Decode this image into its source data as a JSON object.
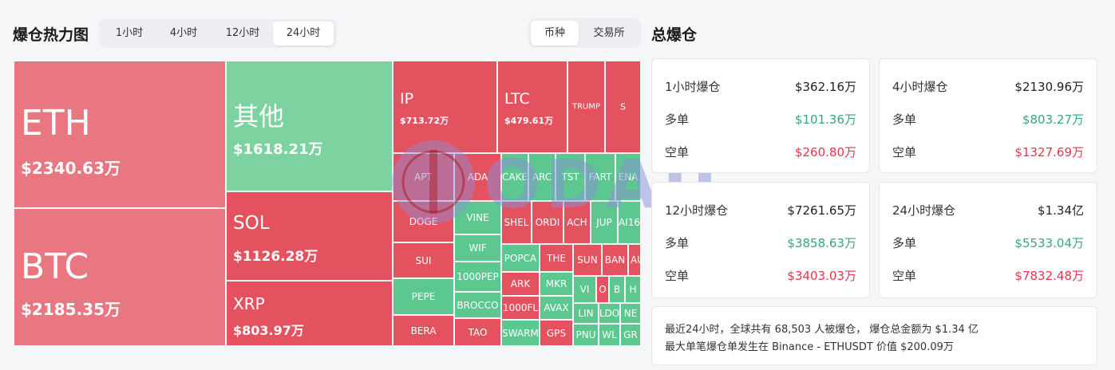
{
  "heatmap": {
    "title": "爆仓热力图",
    "timeframes": [
      "1小时",
      "4小时",
      "12小时",
      "24小时"
    ],
    "active_timeframe": "24小时",
    "modes": [
      "币种",
      "交易所"
    ],
    "active_mode": "币种",
    "colors": {
      "long": "#5cc88f",
      "short": "#e5525f",
      "short_light": "#e97782",
      "other": "#7dd3a0"
    },
    "tiles": {
      "eth": {
        "name": "ETH",
        "value": "$2340.63万"
      },
      "btc": {
        "name": "BTC",
        "value": "$2185.35万"
      },
      "other": {
        "name": "其他",
        "value": "$1618.21万"
      },
      "sol": {
        "name": "SOL",
        "value": "$1126.28万"
      },
      "xrp": {
        "name": "XRP",
        "value": "$803.97万"
      },
      "ip": {
        "name": "IP",
        "value": "$713.72万"
      },
      "ltc": {
        "name": "LTC",
        "value": "$479.61万"
      },
      "trump": {
        "name": "TRUMP"
      },
      "s": {
        "name": "S"
      },
      "apt": {
        "name": "APT"
      },
      "ada": {
        "name": "ADA"
      },
      "cake": {
        "name": "CAKE"
      },
      "arc": {
        "name": "ARC"
      },
      "tst": {
        "name": "TST"
      },
      "fart": {
        "name": "FART"
      },
      "ena": {
        "name": "ENA"
      },
      "doge": {
        "name": "DOGE"
      },
      "vine": {
        "name": "VINE"
      },
      "shell": {
        "name": "SHEL"
      },
      "ordi": {
        "name": "ORDI"
      },
      "ach": {
        "name": "ACH"
      },
      "jup": {
        "name": "JUP"
      },
      "ai16z": {
        "name": "AI16"
      },
      "sui": {
        "name": "SUI"
      },
      "wif": {
        "name": "WIF"
      },
      "popcat": {
        "name": "POPCA"
      },
      "the": {
        "name": "THE"
      },
      "sun": {
        "name": "SUN"
      },
      "ban": {
        "name": "BAN"
      },
      "au": {
        "name": "AU"
      },
      "pepe1000": {
        "name": "1000PEP"
      },
      "ark": {
        "name": "ARK"
      },
      "mkr": {
        "name": "MKR"
      },
      "vi": {
        "name": "VI"
      },
      "o": {
        "name": "O"
      },
      "b": {
        "name": "B"
      },
      "h": {
        "name": "H"
      },
      "pepe": {
        "name": "PEPE"
      },
      "brocc": {
        "name": "BROCCO"
      },
      "floki": {
        "name": "1000FL"
      },
      "avax": {
        "name": "AVAX"
      },
      "lin": {
        "name": "LIN"
      },
      "ldo": {
        "name": "LDO"
      },
      "ne": {
        "name": "NE"
      },
      "bera": {
        "name": "BERA"
      },
      "tao": {
        "name": "TAO"
      },
      "swarm": {
        "name": "SWARM"
      },
      "gps": {
        "name": "GPS"
      },
      "pnu": {
        "name": "PNU"
      },
      "wl": {
        "name": "WL"
      },
      "gr": {
        "name": "GR"
      }
    }
  },
  "total": {
    "title": "总爆仓",
    "cards": [
      {
        "label": "1小时爆仓",
        "total": "$362.16万",
        "long_label": "多单",
        "long": "$101.36万",
        "short_label": "空单",
        "short": "$260.80万"
      },
      {
        "label": "4小时爆仓",
        "total": "$2130.96万",
        "long_label": "多单",
        "long": "$803.27万",
        "short_label": "空单",
        "short": "$1327.69万"
      },
      {
        "label": "12小时爆仓",
        "total": "$7261.65万",
        "long_label": "多单",
        "long": "$3858.63万",
        "short_label": "空单",
        "short": "$3403.03万"
      },
      {
        "label": "24小时爆仓",
        "total": "$1.34亿",
        "long_label": "多单",
        "long": "$5533.04万",
        "short_label": "空单",
        "short": "$7832.48万"
      }
    ],
    "summary_line1": "最近24小时，全球共有 68,503 人被爆仓，  爆仓总金额为 $1.34 亿",
    "summary_line2": "最大单笔爆仓单发生在 Binance - ETHUSDT 价值 $200.09万"
  },
  "watermark": {
    "text": "ODAILY"
  }
}
